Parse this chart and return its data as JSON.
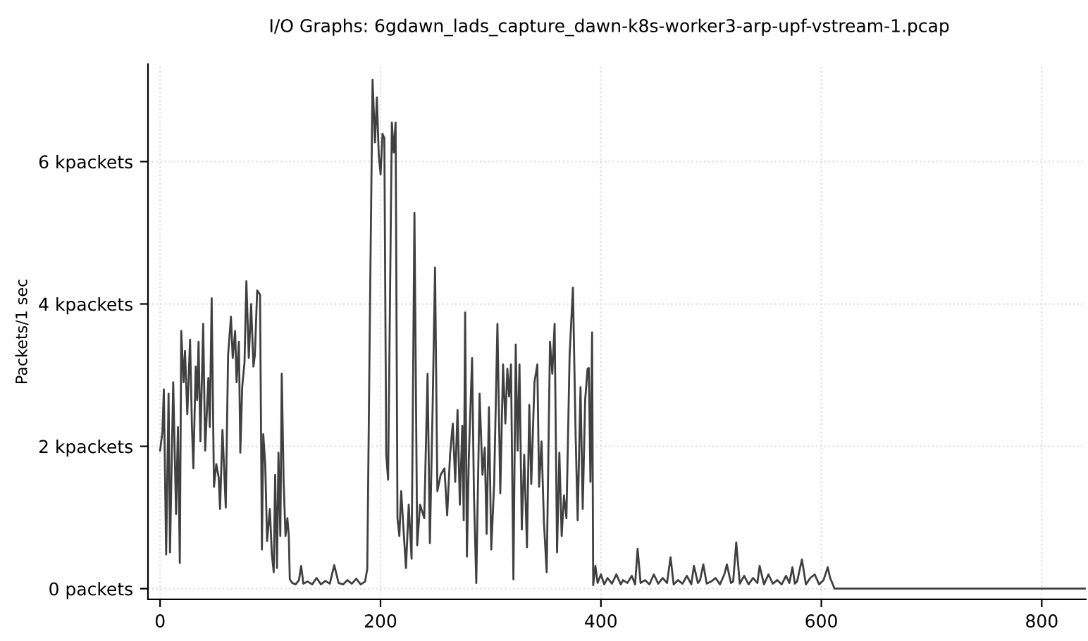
{
  "chart_data": {
    "type": "line",
    "title": "I/O Graphs: 6gdawn_lads_capture_dawn-k8s-worker3-arp-upf-vstream-1.pcap",
    "ylabel": "Packets/1 sec",
    "series": [
      {
        "color": "#404040",
        "x": [
          0,
          2.1,
          3.4,
          5.5,
          7.7,
          9,
          11.9,
          14.5,
          16.2,
          17.9,
          19.2,
          21.3,
          22.6,
          24.7,
          27.2,
          28.9,
          30.2,
          32.3,
          33.6,
          34.9,
          36.6,
          39.1,
          40.9,
          43.8,
          45.1,
          46.8,
          48.9,
          51,
          53.2,
          54.4,
          56.6,
          59.6,
          61.7,
          64.3,
          65.9,
          68.1,
          69.4,
          71.5,
          72.8,
          74.5,
          76.6,
          78.3,
          80.5,
          82.6,
          84.7,
          86,
          88.1,
          90.7,
          92.4,
          93.6,
          95.4,
          97.1,
          99.6,
          101.4,
          103.1,
          104.4,
          106.1,
          107.4,
          109.1,
          110.4,
          112.1,
          113.8,
          115.5,
          116.8,
          117.7,
          120,
          123,
          126,
          128,
          130,
          134,
          138,
          142,
          146,
          150,
          154,
          158,
          162,
          166,
          170,
          174,
          178,
          182,
          186,
          188,
          190.7,
          192.8,
          195,
          196.7,
          198.4,
          200.1,
          201.8,
          203.5,
          205.2,
          206.9,
          208.6,
          210.3,
          212,
          213.7,
          215.4,
          217.1,
          218.8,
          220.5,
          223.1,
          225.6,
          228.2,
          230.8,
          233.3,
          235.9,
          239.7,
          242.7,
          244.8,
          247.3,
          249.5,
          251.6,
          254.6,
          258,
          260.5,
          263.1,
          265.6,
          267.8,
          269.9,
          272,
          274.2,
          275.5,
          276.8,
          278.4,
          280.1,
          283.1,
          284.8,
          286.9,
          289.9,
          292.5,
          294.6,
          296.3,
          298.4,
          300.5,
          303.1,
          306.1,
          308.7,
          311.2,
          313.3,
          315.1,
          316.7,
          318.4,
          320.6,
          322.7,
          324.4,
          326.1,
          328.2,
          330.4,
          332.9,
          335,
          336.8,
          339.7,
          342.3,
          343.9,
          346.1,
          348.3,
          350.8,
          353.8,
          355.9,
          358,
          360.2,
          362.3,
          364.4,
          366.5,
          368.7,
          371.6,
          374.6,
          377.1,
          378.9,
          381.5,
          383.5,
          385.7,
          387.9,
          389,
          390.5,
          392,
          393,
          395,
          397,
          400,
          403,
          406,
          410,
          414,
          418,
          420,
          424,
          428,
          431,
          433.3,
          436,
          440,
          444,
          448,
          452,
          456,
          460,
          463.2,
          466,
          470,
          474,
          478,
          482,
          484.4,
          488,
          490,
          492.9,
          496,
          500,
          504,
          508,
          512,
          514.3,
          518,
          520,
          522.8,
          526,
          530,
          534,
          538,
          542,
          544,
          548,
          552,
          556,
          560,
          564,
          568,
          571,
          573.8,
          576,
          578,
          582.4,
          586,
          590,
          594,
          598,
          602,
          605.8,
          608,
          612,
          840
        ],
        "values": [
          1.94,
          2.2,
          2.8,
          0.48,
          2.74,
          0.51,
          2.9,
          1.05,
          2.27,
          0.36,
          3.62,
          2.9,
          3.34,
          2.45,
          3.5,
          2.27,
          1.69,
          3.12,
          2.65,
          3.47,
          2.07,
          3.72,
          1.94,
          2.96,
          2.27,
          4.08,
          1.43,
          1.75,
          1.56,
          1.12,
          2.23,
          1.14,
          3.28,
          3.82,
          3.24,
          3.62,
          2.9,
          3.47,
          1.91,
          2.83,
          3.18,
          4.32,
          3.24,
          4.0,
          3.12,
          3.28,
          4.19,
          4.13,
          0.55,
          2.17,
          1.75,
          0.67,
          1.12,
          0.48,
          0.23,
          1.6,
          0.29,
          1.91,
          0.74,
          3.02,
          1.5,
          0.74,
          0.99,
          0.74,
          0.13,
          0.08,
          0.06,
          0.12,
          0.32,
          0.07,
          0.1,
          0.06,
          0.15,
          0.06,
          0.11,
          0.07,
          0.33,
          0.08,
          0.06,
          0.12,
          0.07,
          0.14,
          0.06,
          0.1,
          0.28,
          4.29,
          7.15,
          6.27,
          6.9,
          6.1,
          5.82,
          6.39,
          6.33,
          1.88,
          1.53,
          4.04,
          6.55,
          6.13,
          6.55,
          0.99,
          0.74,
          1.37,
          0.93,
          0.29,
          1.18,
          0.42,
          5.28,
          0.61,
          1.18,
          0.99,
          3.02,
          0.64,
          2.55,
          4.51,
          1.37,
          1.6,
          1.69,
          1.03,
          1.88,
          2.32,
          1.5,
          2.51,
          1.18,
          2.29,
          0.96,
          3.88,
          0.45,
          1.82,
          3.24,
          1.31,
          0.08,
          2.74,
          1.6,
          1.98,
          0.77,
          2.55,
          0.55,
          1.47,
          3.72,
          1.34,
          3.15,
          2.32,
          3.09,
          2.7,
          3.15,
          0.13,
          3.43,
          1.94,
          3.15,
          0.83,
          1.88,
          0.58,
          2.58,
          1.47,
          2.9,
          3.15,
          1.43,
          2.07,
          0.93,
          0.23,
          3.47,
          3.02,
          3.72,
          0.51,
          1.91,
          0.74,
          1.31,
          0.99,
          3.28,
          4.23,
          2.13,
          0.96,
          2.83,
          1.12,
          2.65,
          3.09,
          3.1,
          1.5,
          3.6,
          0.05,
          0.32,
          0.08,
          0.2,
          0.06,
          0.15,
          0.07,
          0.2,
          0.06,
          0.12,
          0.08,
          0.18,
          0.06,
          0.56,
          0.08,
          0.12,
          0.06,
          0.2,
          0.07,
          0.15,
          0.08,
          0.44,
          0.06,
          0.12,
          0.07,
          0.18,
          0.06,
          0.32,
          0.08,
          0.12,
          0.34,
          0.07,
          0.1,
          0.15,
          0.06,
          0.2,
          0.34,
          0.08,
          0.1,
          0.65,
          0.07,
          0.18,
          0.06,
          0.15,
          0.08,
          0.32,
          0.06,
          0.2,
          0.07,
          0.12,
          0.06,
          0.18,
          0.08,
          0.3,
          0.07,
          0.1,
          0.41,
          0.06,
          0.15,
          0.2,
          0.06,
          0.12,
          0.3,
          0.15,
          0,
          0
        ]
      }
    ],
    "xlim": [
      -11,
      840
    ],
    "ylim": [
      -0.15,
      7.37
    ],
    "xticks": [
      0,
      200,
      400,
      600,
      800
    ],
    "yticks": [
      {
        "value": 0,
        "label": "0 packets"
      },
      {
        "value": 2,
        "label": "2 kpackets"
      },
      {
        "value": 4,
        "label": "4 kpackets"
      },
      {
        "value": 6,
        "label": "6 kpackets"
      }
    ],
    "grid": true,
    "line_style": "solid",
    "marker": "none"
  }
}
